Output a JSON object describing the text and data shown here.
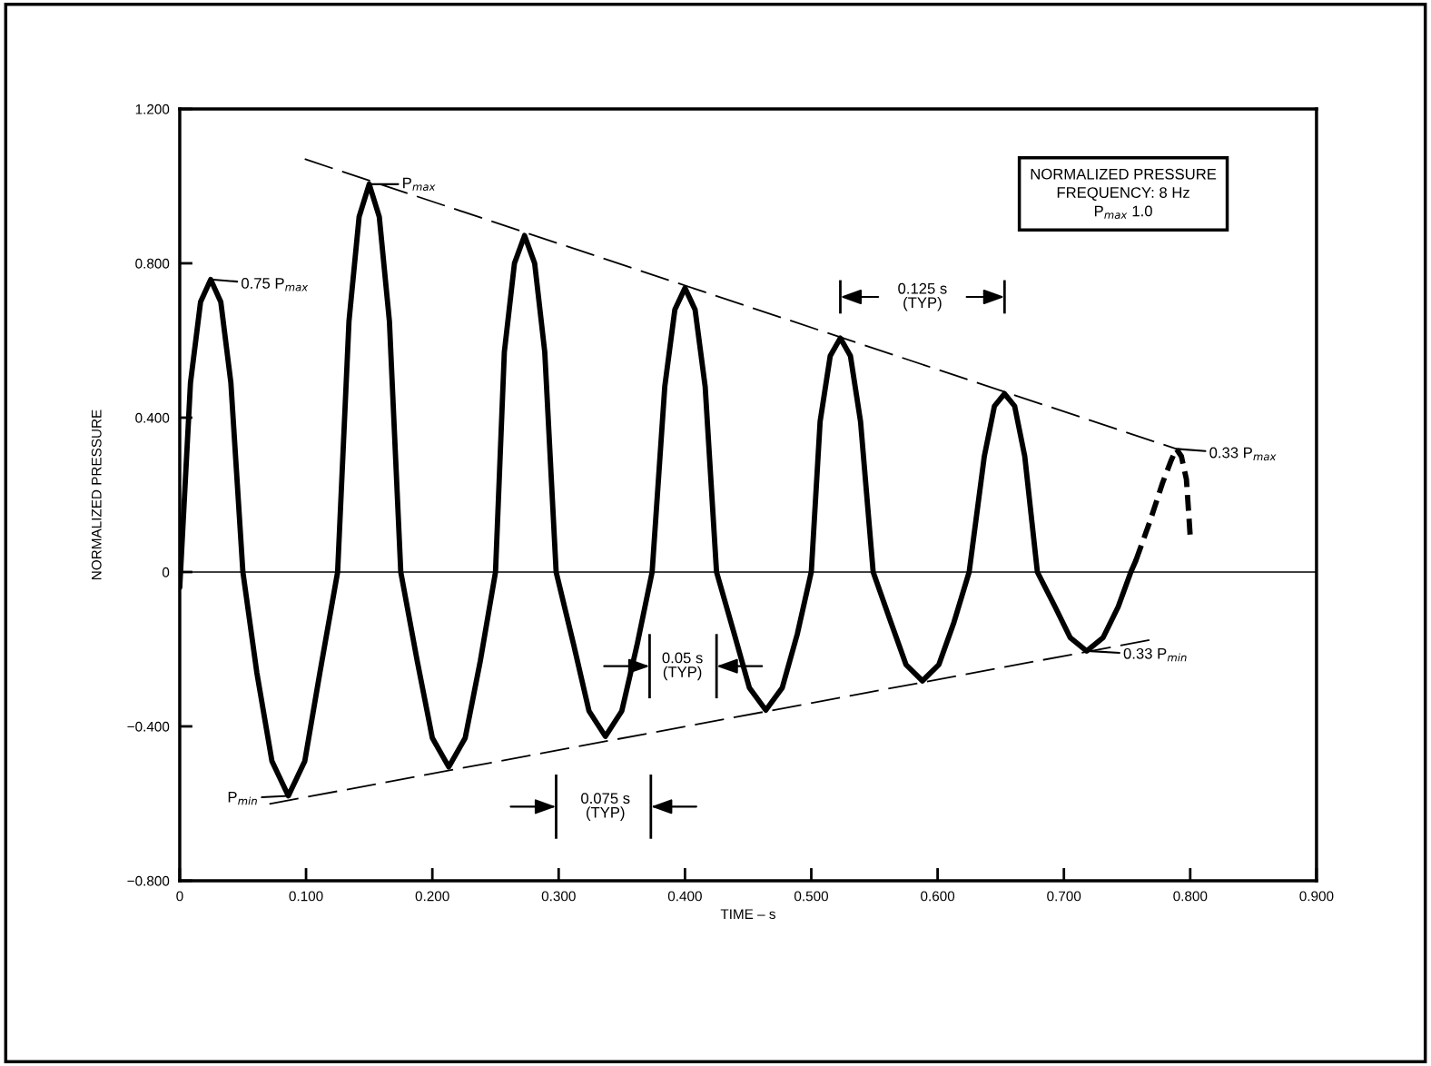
{
  "chart_data": {
    "type": "line",
    "xlabel": "TIME – s",
    "ylabel": "NORMALIZED PRESSURE",
    "xlim": [
      0,
      0.9
    ],
    "ylim": [
      -0.8,
      1.2
    ],
    "xticks": [
      0,
      {
        "value": 0.1,
        "label": "0.100"
      },
      {
        "value": 0.2,
        "label": "0.200"
      },
      {
        "value": 0.3,
        "label": "0.300"
      },
      {
        "value": 0.4,
        "label": "0.400"
      },
      {
        "value": 0.5,
        "label": "0.500"
      },
      {
        "value": 0.6,
        "label": "0.600"
      },
      {
        "value": 0.7,
        "label": "0.700"
      },
      {
        "value": 0.8,
        "label": "0.800"
      },
      {
        "value": 0.9,
        "label": "0.900"
      }
    ],
    "yticks": [
      {
        "value": -0.8,
        "label": "−0.800"
      },
      {
        "value": -0.4,
        "label": "−0.400"
      },
      0,
      {
        "value": 0.4,
        "label": "0.400"
      },
      {
        "value": 0.8,
        "label": "0.800"
      },
      {
        "value": 1.2,
        "label": "1.200"
      }
    ],
    "grid": false,
    "legend": false,
    "marker": "none",
    "series": [
      {
        "color": "#000000",
        "line_style": "solid",
        "x": [
          0.0,
          0.0085,
          0.0165,
          0.0245,
          0.0325,
          0.0405,
          0.05,
          0.061,
          0.073,
          0.086,
          0.099,
          0.111,
          0.125,
          0.134,
          0.142,
          0.15,
          0.158,
          0.166,
          0.175,
          0.188,
          0.2,
          0.213,
          0.226,
          0.238,
          0.25,
          0.257,
          0.265,
          0.273,
          0.281,
          0.289,
          0.298,
          0.312,
          0.324,
          0.337,
          0.35,
          0.362,
          0.374,
          0.384,
          0.392,
          0.4,
          0.408,
          0.416,
          0.425,
          0.439,
          0.451,
          0.464,
          0.477,
          0.489,
          0.5,
          0.507,
          0.515,
          0.523,
          0.531,
          0.539,
          0.549,
          0.563,
          0.575,
          0.588,
          0.601,
          0.613,
          0.625,
          0.637,
          0.645,
          0.653,
          0.661,
          0.669,
          0.679,
          0.693,
          0.705,
          0.718,
          0.731,
          0.743,
          0.753,
          0.757
        ],
        "values": [
          -0.04,
          0.49,
          0.7,
          0.758,
          0.7,
          0.49,
          0.0,
          -0.26,
          -0.49,
          -0.58,
          -0.49,
          -0.26,
          0.0,
          0.65,
          0.92,
          1.005,
          0.92,
          0.65,
          0.0,
          -0.23,
          -0.43,
          -0.505,
          -0.43,
          -0.23,
          0.0,
          0.57,
          0.8,
          0.872,
          0.8,
          0.57,
          0.0,
          -0.19,
          -0.36,
          -0.426,
          -0.36,
          -0.19,
          0.0,
          0.48,
          0.68,
          0.736,
          0.68,
          0.48,
          0.0,
          -0.16,
          -0.3,
          -0.358,
          -0.3,
          -0.16,
          0.0,
          0.39,
          0.56,
          0.606,
          0.56,
          0.39,
          0.0,
          -0.13,
          -0.24,
          -0.282,
          -0.24,
          -0.13,
          0.0,
          0.3,
          0.43,
          0.462,
          0.43,
          0.3,
          0.0,
          -0.09,
          -0.17,
          -0.205,
          -0.17,
          -0.09,
          0.0,
          0.03
        ]
      },
      {
        "color": "#000000",
        "line_style": "dashed",
        "x": [
          0.757,
          0.768,
          0.778,
          0.785,
          0.789,
          0.793,
          0.797,
          0.8
        ],
        "values": [
          0.03,
          0.13,
          0.23,
          0.29,
          0.319,
          0.3,
          0.24,
          0.093
        ]
      },
      {
        "color": "#000000",
        "line_style": "dashed",
        "x": [
          0.099,
          0.789
        ],
        "values": [
          1.07,
          0.319
        ]
      },
      {
        "color": "#000000",
        "line_style": "dashed",
        "x": [
          0.071,
          0.77
        ],
        "values": [
          -0.601,
          -0.175
        ]
      }
    ],
    "ref_lines": [
      {
        "axis": "y",
        "value": 0,
        "color": "#000000",
        "line_style": "solid"
      }
    ],
    "annotations": [
      {
        "text": "0.75 P$_{max}$",
        "x": 0.0245,
        "y": 0.758
      },
      {
        "text": "P$_{max}$",
        "x": 0.15,
        "y": 1.005
      },
      {
        "text": "P$_{min}$",
        "x": 0.086,
        "y": -0.58
      },
      {
        "text": "0.33 P$_{max}$",
        "x": 0.789,
        "y": 0.319
      },
      {
        "text": "0.33 P$_{min}$",
        "x": 0.721,
        "y": -0.205
      },
      "0.125 s\n(TYP)",
      "0.05 s\n(TYP)",
      "0.075 s\n(TYP)",
      "NORMALIZED PRESSURE\nFREQUENCY: 8 Hz\nP$_{max}$ 1.0"
    ]
  }
}
